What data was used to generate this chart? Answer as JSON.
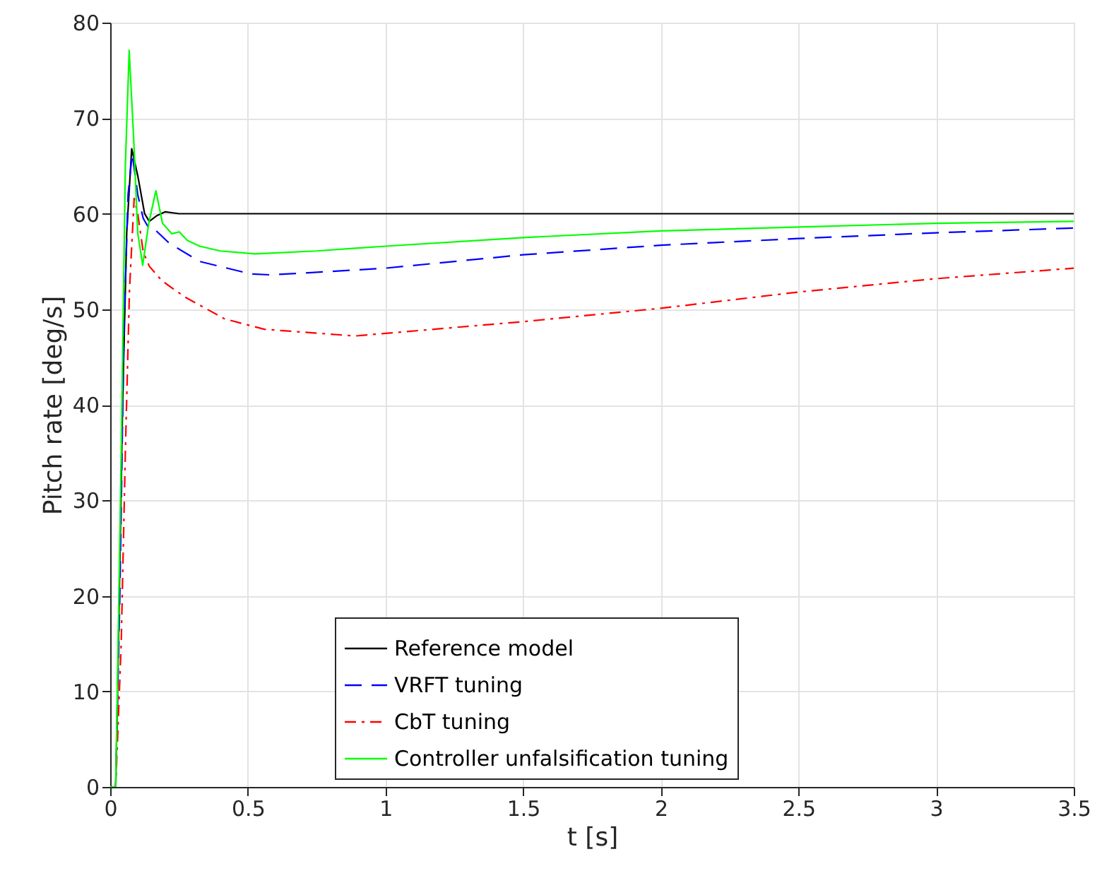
{
  "chart_data": {
    "type": "line",
    "xlabel": "t [s]",
    "ylabel": "Pitch rate [deg/s]",
    "xlim": [
      0,
      3.5
    ],
    "xticks": [
      0,
      0.5,
      1,
      1.5,
      2,
      2.5,
      3,
      3.5
    ],
    "ylim": [
      0,
      80
    ],
    "yticks": [
      0,
      10,
      20,
      30,
      40,
      50,
      60,
      70,
      80
    ],
    "grid": true,
    "legend": "bottom",
    "marker": "none",
    "series": [
      {
        "name": "Reference model",
        "color": "#000000",
        "line_style": "solid",
        "x": [
          0,
          0.02,
          0.03,
          0.045,
          0.06,
          0.078,
          0.1,
          0.125,
          0.142,
          0.17,
          0.2,
          0.25,
          3.5
        ],
        "values": [
          0,
          0,
          15,
          40,
          58,
          66.8,
          64,
          60,
          59.2,
          59.8,
          60.2,
          60,
          60
        ]
      },
      {
        "name": "VRFT tuning",
        "color": "#0000ff",
        "line_style": "dashed",
        "x": [
          0,
          0.02,
          0.035,
          0.05,
          0.065,
          0.08,
          0.1,
          0.12,
          0.14,
          0.16,
          0.215,
          0.325,
          0.51,
          0.58,
          0.65,
          1.0,
          1.5,
          2,
          2.5,
          3,
          3.5
        ],
        "values": [
          0,
          0,
          20,
          48,
          62,
          66.3,
          62,
          59.5,
          58.5,
          58.4,
          56.9,
          55,
          53.7,
          53.6,
          53.7,
          54.3,
          55.7,
          56.7,
          57.4,
          58,
          58.5
        ]
      },
      {
        "name": "CbT tuning",
        "color": "#ff0000",
        "line_style": "dashdot",
        "x": [
          0,
          0.02,
          0.04,
          0.055,
          0.07,
          0.087,
          0.1,
          0.12,
          0.142,
          0.187,
          0.27,
          0.415,
          0.56,
          0.89,
          1.5,
          2,
          2.5,
          3,
          3.5
        ],
        "values": [
          0,
          0,
          15,
          35,
          52,
          61.6,
          60,
          56,
          54.5,
          53,
          51.3,
          49,
          47.9,
          47.2,
          48.7,
          50.1,
          51.8,
          53.2,
          54.3
        ]
      },
      {
        "name": "Controller unfalsification tuning",
        "color": "#00ff00",
        "line_style": "solid",
        "x": [
          0,
          0.02,
          0.04,
          0.055,
          0.069,
          0.085,
          0.1,
          0.118,
          0.14,
          0.166,
          0.19,
          0.224,
          0.251,
          0.28,
          0.325,
          0.4,
          0.526,
          0.75,
          1,
          1.5,
          2,
          2.5,
          3,
          3.5
        ],
        "values": [
          0,
          0,
          35,
          65,
          77.1,
          68,
          58,
          54.6,
          59,
          62.4,
          59,
          57.9,
          58.1,
          57.2,
          56.6,
          56.1,
          55.8,
          56.1,
          56.6,
          57.5,
          58.2,
          58.6,
          59,
          59.2
        ]
      }
    ]
  }
}
